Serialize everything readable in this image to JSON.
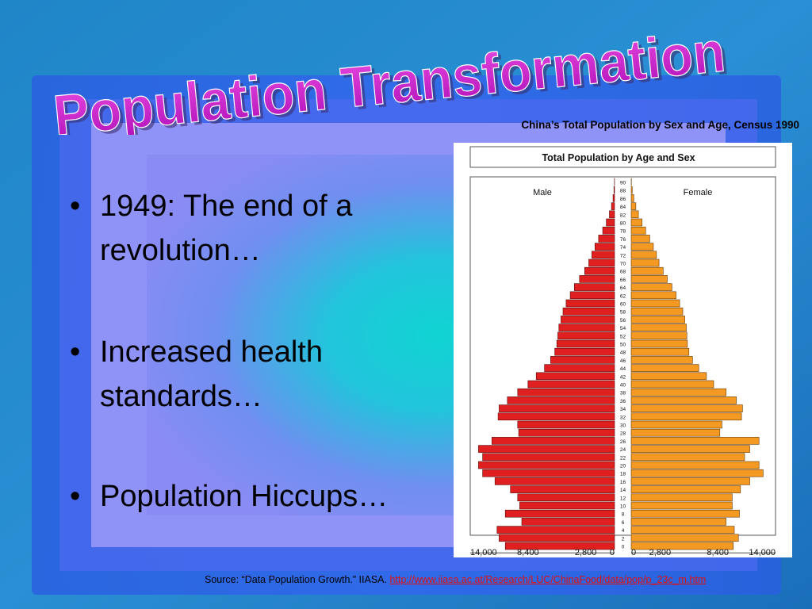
{
  "slide": {
    "title": "Population Transformation",
    "bullets": [
      "1949: The end of a revolution…",
      "Increased health standards…",
      "Population Hiccups…"
    ],
    "caption": "China’s Total Population by Sex and Age, Census 1990",
    "source_text": "Source: “Data Population Growth.” IIASA.",
    "source_link": "http://www.iiasa.ac.at/Research/LUC/ChinaFood/data/pop/p_23c_m.htm"
  },
  "colors": {
    "title": "#cc20c8",
    "male": "#e02020",
    "female": "#f49a22",
    "link": "#e01010"
  },
  "chart_data": {
    "type": "bar",
    "title": "Total Population by Age and Sex",
    "left_label": "Male",
    "right_label": "Female",
    "age_labels": [
      "90",
      "88",
      "86",
      "84",
      "82",
      "80",
      "78",
      "76",
      "74",
      "72",
      "70",
      "68",
      "66",
      "64",
      "62",
      "60",
      "58",
      "56",
      "54",
      "52",
      "50",
      "48",
      "46",
      "44",
      "42",
      "40",
      "38",
      "36",
      "34",
      "32",
      "30",
      "28",
      "26",
      "24",
      "22",
      "20",
      "18",
      "16",
      "14",
      "12",
      "10",
      "8",
      "6",
      "4",
      "2",
      "0"
    ],
    "x_ticks_left": [
      "14,000",
      "8,400",
      "2,800",
      "0"
    ],
    "x_ticks_right": [
      "0",
      "2,800",
      "8,400",
      "14,000"
    ],
    "xlim": [
      0,
      14000
    ],
    "series": [
      {
        "name": "Male",
        "values": [
          10,
          60,
          150,
          300,
          500,
          800,
          1150,
          1550,
          1900,
          2200,
          2500,
          2900,
          3400,
          3900,
          4300,
          4700,
          5000,
          5200,
          5400,
          5500,
          5600,
          5800,
          6200,
          6800,
          7600,
          8400,
          9400,
          10400,
          11200,
          11300,
          9400,
          9300,
          11900,
          13200,
          12800,
          13200,
          12800,
          11600,
          10100,
          9400,
          9200,
          10600,
          9000,
          11400,
          11200,
          10600
        ]
      },
      {
        "name": "Female",
        "values": [
          20,
          100,
          250,
          450,
          700,
          1050,
          1400,
          1800,
          2150,
          2450,
          2700,
          3100,
          3500,
          3950,
          4350,
          4700,
          5000,
          5200,
          5350,
          5400,
          5450,
          5600,
          5950,
          6550,
          7300,
          8000,
          9200,
          10200,
          10800,
          10700,
          8800,
          8600,
          12400,
          11500,
          11000,
          12400,
          12800,
          11500,
          10600,
          9800,
          9800,
          10500,
          9200,
          10000,
          10400,
          9900
        ]
      }
    ]
  }
}
